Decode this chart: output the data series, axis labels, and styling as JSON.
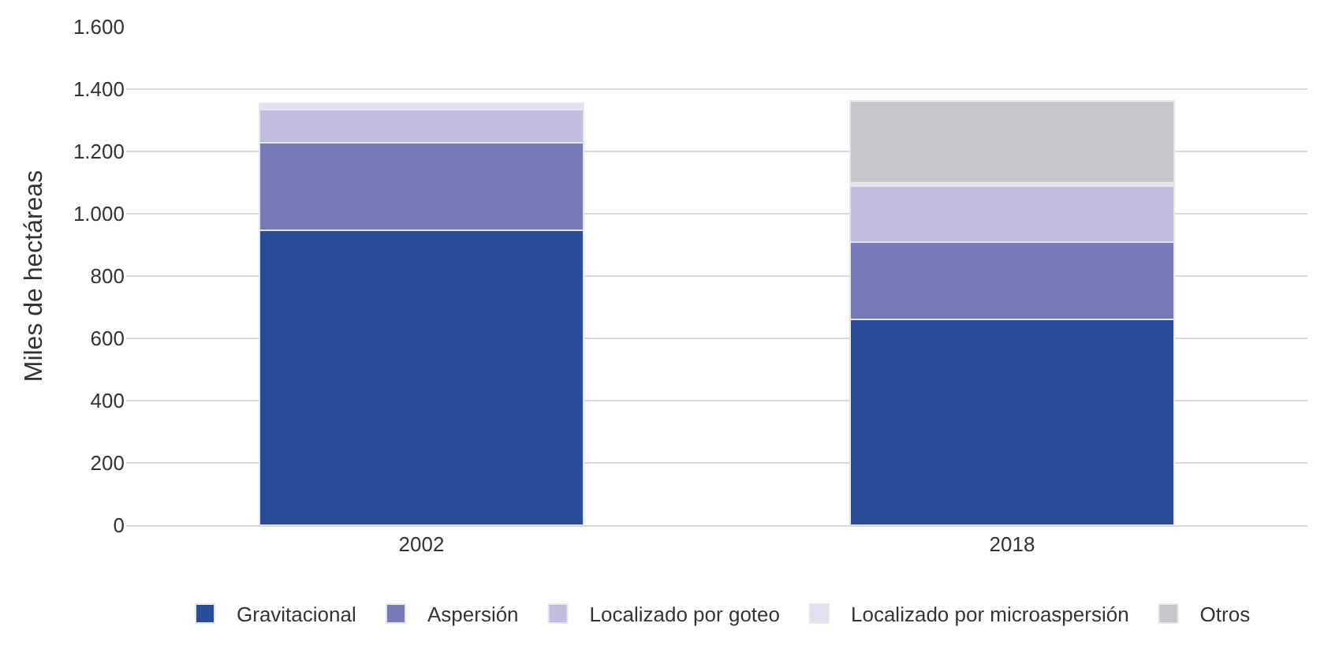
{
  "chart_data": {
    "type": "bar",
    "stacked": true,
    "ylabel": "Miles de hectáreas",
    "categories": [
      "2002",
      "2018"
    ],
    "series": [
      {
        "name": "Gravitacional",
        "color": "#2a4b96",
        "values": [
          946,
          662
        ]
      },
      {
        "name": "Aspersión",
        "color": "#767bb8",
        "values": [
          282,
          248
        ]
      },
      {
        "name": "Localizado por goteo",
        "color": "#c1bddf",
        "values": [
          105,
          179
        ]
      },
      {
        "name": "Localizado por microaspersión",
        "color": "#e3dff0",
        "values": [
          21,
          9
        ]
      },
      {
        "name": "Otros",
        "color": "#c6c5ca",
        "values": [
          null,
          263
        ]
      }
    ],
    "ylim": [
      0,
      1600
    ],
    "yticks": [
      0,
      200,
      400,
      600,
      800,
      {
        "value": 1000,
        "label": "1.000"
      },
      {
        "value": 1200,
        "label": "1.200"
      },
      {
        "value": 1400,
        "label": "1.400"
      },
      {
        "value": 1600,
        "label": "1.600"
      }
    ],
    "grid": "y",
    "legend": "bottom"
  }
}
